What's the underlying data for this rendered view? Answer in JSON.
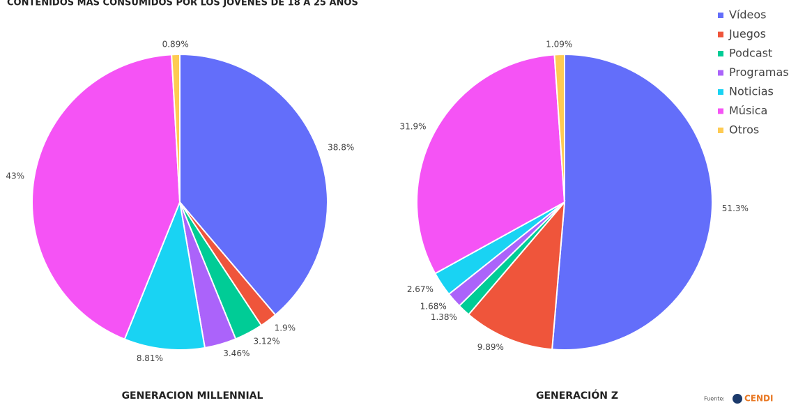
{
  "title": "CONTENIDOS MÁS CONSUMIDOS POR LOS JÓVENES DE 18 A 25 AÑOS",
  "source": "Fuente:",
  "logo": "CENDI",
  "chart_data": [
    {
      "type": "pie",
      "title": "GENERACION MILLENNIAL",
      "categories": [
        "Vídeos",
        "Juegos",
        "Podcast",
        "Programas",
        "Noticias",
        "Música",
        "Otros"
      ],
      "colors": [
        "#636efa",
        "#ef553b",
        "#00cc96",
        "#ab63fa",
        "#19d3f3",
        "#f553f5",
        "#fecb52"
      ],
      "values": [
        38.8,
        1.9,
        3.12,
        3.46,
        8.81,
        43,
        0.89
      ],
      "value_labels": [
        "38.8%",
        "1.9%",
        "3.12%",
        "3.46%",
        "8.81%",
        "43%",
        "0.89%"
      ]
    },
    {
      "type": "pie",
      "title": "GENERACIÓN Z",
      "categories": [
        "Vídeos",
        "Juegos",
        "Podcast",
        "Programas",
        "Noticias",
        "Música",
        "Otros"
      ],
      "colors": [
        "#636efa",
        "#ef553b",
        "#00cc96",
        "#ab63fa",
        "#19d3f3",
        "#f553f5",
        "#fecb52"
      ],
      "values": [
        51.3,
        9.89,
        1.38,
        1.68,
        2.67,
        31.9,
        1.09
      ],
      "value_labels": [
        "51.3%",
        "9.89%",
        "1.38%",
        "1.68%",
        "2.67%",
        "31.9%",
        "1.09%"
      ]
    }
  ]
}
